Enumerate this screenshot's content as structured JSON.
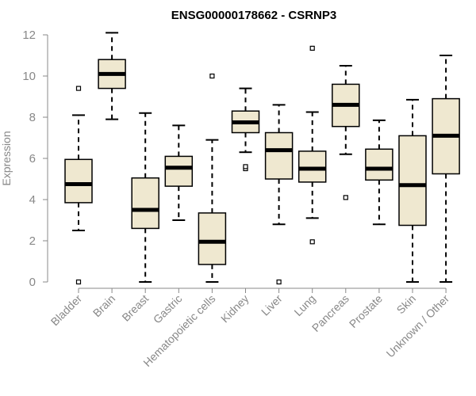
{
  "chart_data": {
    "type": "boxplot",
    "title": "ENSG00000178662 - CSRNP3",
    "xlabel": "",
    "ylabel": "Expression",
    "ylim": [
      0,
      12
    ],
    "yticks": [
      0,
      2,
      4,
      6,
      8,
      10,
      12
    ],
    "box_color": "#efe8d0",
    "line_color": "#000000",
    "axis_color": "#888888",
    "categories": [
      "Bladder",
      "Brain",
      "Breast",
      "Gastric",
      "Hematopoietic cells",
      "Kidney",
      "Liver",
      "Lung",
      "Pancreas",
      "Prostate",
      "Skin",
      "Unknown / Other"
    ],
    "series": [
      {
        "name": "Bladder",
        "whisker_low": 2.5,
        "q1": 3.85,
        "median": 4.75,
        "q3": 5.95,
        "whisker_high": 8.1,
        "outliers": [
          0.0,
          9.4
        ]
      },
      {
        "name": "Brain",
        "whisker_low": 7.9,
        "q1": 9.4,
        "median": 10.1,
        "q3": 10.8,
        "whisker_high": 12.1,
        "outliers": []
      },
      {
        "name": "Breast",
        "whisker_low": 0.0,
        "q1": 2.6,
        "median": 3.5,
        "q3": 5.05,
        "whisker_high": 8.2,
        "outliers": []
      },
      {
        "name": "Gastric",
        "whisker_low": 3.0,
        "q1": 4.65,
        "median": 5.55,
        "q3": 6.1,
        "whisker_high": 7.6,
        "outliers": []
      },
      {
        "name": "Hematopoietic cells",
        "whisker_low": 0.0,
        "q1": 0.85,
        "median": 1.95,
        "q3": 3.35,
        "whisker_high": 6.9,
        "outliers": [
          10.0
        ]
      },
      {
        "name": "Kidney",
        "whisker_low": 6.3,
        "q1": 7.25,
        "median": 7.75,
        "q3": 8.3,
        "whisker_high": 9.4,
        "outliers": [
          5.5,
          5.6
        ]
      },
      {
        "name": "Liver",
        "whisker_low": 2.8,
        "q1": 5.0,
        "median": 6.4,
        "q3": 7.25,
        "whisker_high": 8.6,
        "outliers": [
          0.0
        ]
      },
      {
        "name": "Lung",
        "whisker_low": 3.1,
        "q1": 4.85,
        "median": 5.5,
        "q3": 6.35,
        "whisker_high": 8.25,
        "outliers": [
          1.95,
          11.35
        ]
      },
      {
        "name": "Pancreas",
        "whisker_low": 6.2,
        "q1": 7.55,
        "median": 8.6,
        "q3": 9.6,
        "whisker_high": 10.5,
        "outliers": [
          4.1
        ]
      },
      {
        "name": "Prostate",
        "whisker_low": 2.8,
        "q1": 4.95,
        "median": 5.5,
        "q3": 6.45,
        "whisker_high": 7.85,
        "outliers": []
      },
      {
        "name": "Skin",
        "whisker_low": 0.0,
        "q1": 2.75,
        "median": 4.7,
        "q3": 7.1,
        "whisker_high": 8.85,
        "outliers": []
      },
      {
        "name": "Unknown / Other",
        "whisker_low": 0.0,
        "q1": 5.25,
        "median": 7.1,
        "q3": 8.9,
        "whisker_high": 11.0,
        "outliers": []
      }
    ]
  }
}
